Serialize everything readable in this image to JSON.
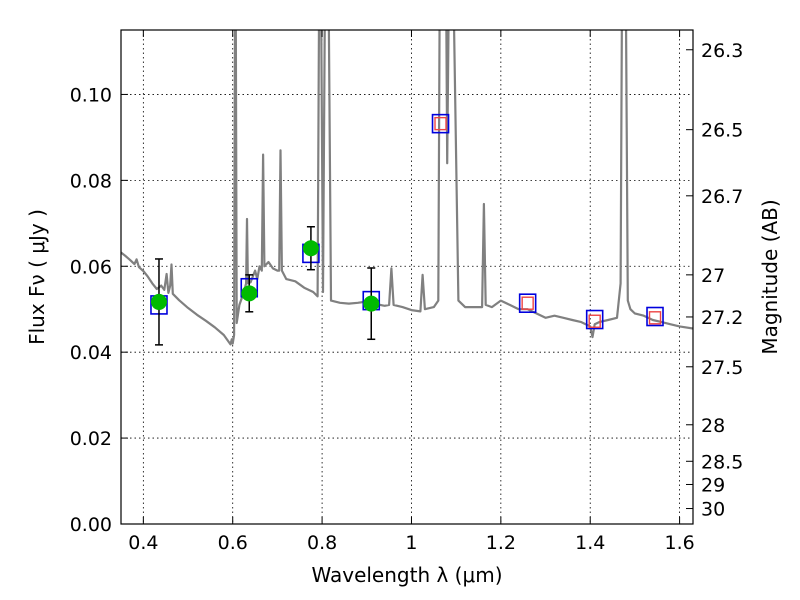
{
  "chart_data": {
    "type": "scatter",
    "xlabel": "Wavelength  λ (μm)",
    "ylabel": "Flux  Fν  ( μJy )",
    "y2label": "Magnitude (AB)",
    "xlim": [
      0.35,
      1.63
    ],
    "ylim": [
      0.0,
      0.115
    ],
    "grid": true,
    "x_ticks": [
      0.4,
      0.6,
      0.8,
      1.0,
      1.2,
      1.4,
      1.6
    ],
    "x_tick_labels": [
      "0.4",
      "0.6",
      "0.8",
      "1",
      "1.2",
      "1.4",
      "1.6"
    ],
    "y_ticks": [
      0.0,
      0.02,
      0.04,
      0.06,
      0.08,
      0.1
    ],
    "y_tick_labels": [
      "0.00",
      "0.02",
      "0.04",
      "0.06",
      "0.08",
      "0.10"
    ],
    "y2_ticks": [
      {
        "label": "26.3",
        "flux": 0.1104
      },
      {
        "label": "26.5",
        "flux": 0.0918
      },
      {
        "label": "26.7",
        "flux": 0.0764
      },
      {
        "label": "27",
        "flux": 0.058
      },
      {
        "label": "27.2",
        "flux": 0.0482
      },
      {
        "label": "27.5",
        "flux": 0.0366
      },
      {
        "label": "28",
        "flux": 0.0231
      },
      {
        "label": "28.5",
        "flux": 0.0146
      },
      {
        "label": "29",
        "flux": 0.0092
      },
      {
        "label": "30",
        "flux": 0.0036
      }
    ],
    "series": [
      {
        "kind": "observed",
        "color": "#00bb00",
        "x": [
          0.435,
          0.637,
          0.775,
          0.91
        ],
        "y": [
          0.0517,
          0.0537,
          0.0642,
          0.0513
        ],
        "yerr": [
          0.01,
          0.0043,
          0.005,
          0.0083
        ]
      },
      {
        "kind": "model-photometry",
        "color": "#0000dd",
        "x": [
          0.435,
          0.637,
          0.775,
          0.91,
          1.065,
          1.26,
          1.41,
          1.545
        ],
        "y": [
          0.051,
          0.055,
          0.063,
          0.052,
          0.0932,
          0.0514,
          0.0476,
          0.0483
        ]
      },
      {
        "kind": "predicted",
        "color": "#ee4444",
        "x": [
          1.065,
          1.26,
          1.41,
          1.545
        ],
        "y": [
          0.0932,
          0.0514,
          0.0472,
          0.048
        ]
      },
      {
        "kind": "model-sed",
        "color": "#808080",
        "points": [
          [
            0.35,
            0.0632
          ],
          [
            0.36,
            0.0624
          ],
          [
            0.37,
            0.0615
          ],
          [
            0.38,
            0.0605
          ],
          [
            0.385,
            0.0616
          ],
          [
            0.39,
            0.0598
          ],
          [
            0.4,
            0.0589
          ],
          [
            0.41,
            0.0576
          ],
          [
            0.42,
            0.056
          ],
          [
            0.43,
            0.0547
          ],
          [
            0.44,
            0.0555
          ],
          [
            0.447,
            0.0545
          ],
          [
            0.452,
            0.0582
          ],
          [
            0.456,
            0.0538
          ],
          [
            0.46,
            0.0555
          ],
          [
            0.463,
            0.0604
          ],
          [
            0.466,
            0.0536
          ],
          [
            0.48,
            0.0521
          ],
          [
            0.5,
            0.0503
          ],
          [
            0.52,
            0.0487
          ],
          [
            0.54,
            0.0473
          ],
          [
            0.56,
            0.0458
          ],
          [
            0.58,
            0.044
          ],
          [
            0.595,
            0.0418
          ],
          [
            0.598,
            0.043
          ],
          [
            0.6,
            0.042
          ],
          [
            0.603,
            0.044
          ],
          [
            0.605,
            0.118
          ],
          [
            0.607,
            0.118
          ],
          [
            0.609,
            0.0468
          ],
          [
            0.615,
            0.051
          ],
          [
            0.625,
            0.054
          ],
          [
            0.63,
            0.056
          ],
          [
            0.632,
            0.071
          ],
          [
            0.634,
            0.056
          ],
          [
            0.64,
            0.0563
          ],
          [
            0.65,
            0.059
          ],
          [
            0.655,
            0.057
          ],
          [
            0.66,
            0.06
          ],
          [
            0.665,
            0.059
          ],
          [
            0.668,
            0.086
          ],
          [
            0.671,
            0.06
          ],
          [
            0.68,
            0.061
          ],
          [
            0.69,
            0.0595
          ],
          [
            0.7,
            0.059
          ],
          [
            0.704,
            0.059
          ],
          [
            0.707,
            0.087
          ],
          [
            0.71,
            0.059
          ],
          [
            0.72,
            0.057
          ],
          [
            0.74,
            0.0565
          ],
          [
            0.76,
            0.055
          ],
          [
            0.78,
            0.054
          ],
          [
            0.79,
            0.053
          ],
          [
            0.793,
            0.118
          ],
          [
            0.798,
            0.118
          ],
          [
            0.802,
            0.054
          ],
          [
            0.806,
            0.118
          ],
          [
            0.815,
            0.118
          ],
          [
            0.82,
            0.052
          ],
          [
            0.84,
            0.0515
          ],
          [
            0.86,
            0.0513
          ],
          [
            0.88,
            0.0515
          ],
          [
            0.9,
            0.0518
          ],
          [
            0.92,
            0.0512
          ],
          [
            0.94,
            0.0508
          ],
          [
            0.95,
            0.051
          ],
          [
            0.955,
            0.0595
          ],
          [
            0.96,
            0.051
          ],
          [
            0.98,
            0.0505
          ],
          [
            1.0,
            0.0498
          ],
          [
            1.02,
            0.0495
          ],
          [
            1.025,
            0.058
          ],
          [
            1.03,
            0.05
          ],
          [
            1.05,
            0.0505
          ],
          [
            1.06,
            0.052
          ],
          [
            1.063,
            0.118
          ],
          [
            1.078,
            0.118
          ],
          [
            1.08,
            0.084
          ],
          [
            1.083,
            0.118
          ],
          [
            1.095,
            0.118
          ],
          [
            1.105,
            0.052
          ],
          [
            1.12,
            0.0505
          ],
          [
            1.14,
            0.0505
          ],
          [
            1.158,
            0.0505
          ],
          [
            1.162,
            0.0745
          ],
          [
            1.166,
            0.051
          ],
          [
            1.18,
            0.0505
          ],
          [
            1.2,
            0.052
          ],
          [
            1.22,
            0.051
          ],
          [
            1.24,
            0.05
          ],
          [
            1.26,
            0.05
          ],
          [
            1.28,
            0.049
          ],
          [
            1.3,
            0.048
          ],
          [
            1.32,
            0.0485
          ],
          [
            1.34,
            0.048
          ],
          [
            1.36,
            0.0475
          ],
          [
            1.38,
            0.047
          ],
          [
            1.4,
            0.046
          ],
          [
            1.405,
            0.0435
          ],
          [
            1.41,
            0.0465
          ],
          [
            1.42,
            0.047
          ],
          [
            1.44,
            0.0475
          ],
          [
            1.46,
            0.048
          ],
          [
            1.468,
            0.056
          ],
          [
            1.471,
            0.118
          ],
          [
            1.48,
            0.118
          ],
          [
            1.484,
            0.052
          ],
          [
            1.49,
            0.05
          ],
          [
            1.5,
            0.049
          ],
          [
            1.52,
            0.0485
          ],
          [
            1.54,
            0.0475
          ],
          [
            1.56,
            0.047
          ],
          [
            1.58,
            0.0465
          ],
          [
            1.6,
            0.046
          ],
          [
            1.63,
            0.0455
          ]
        ]
      }
    ]
  }
}
